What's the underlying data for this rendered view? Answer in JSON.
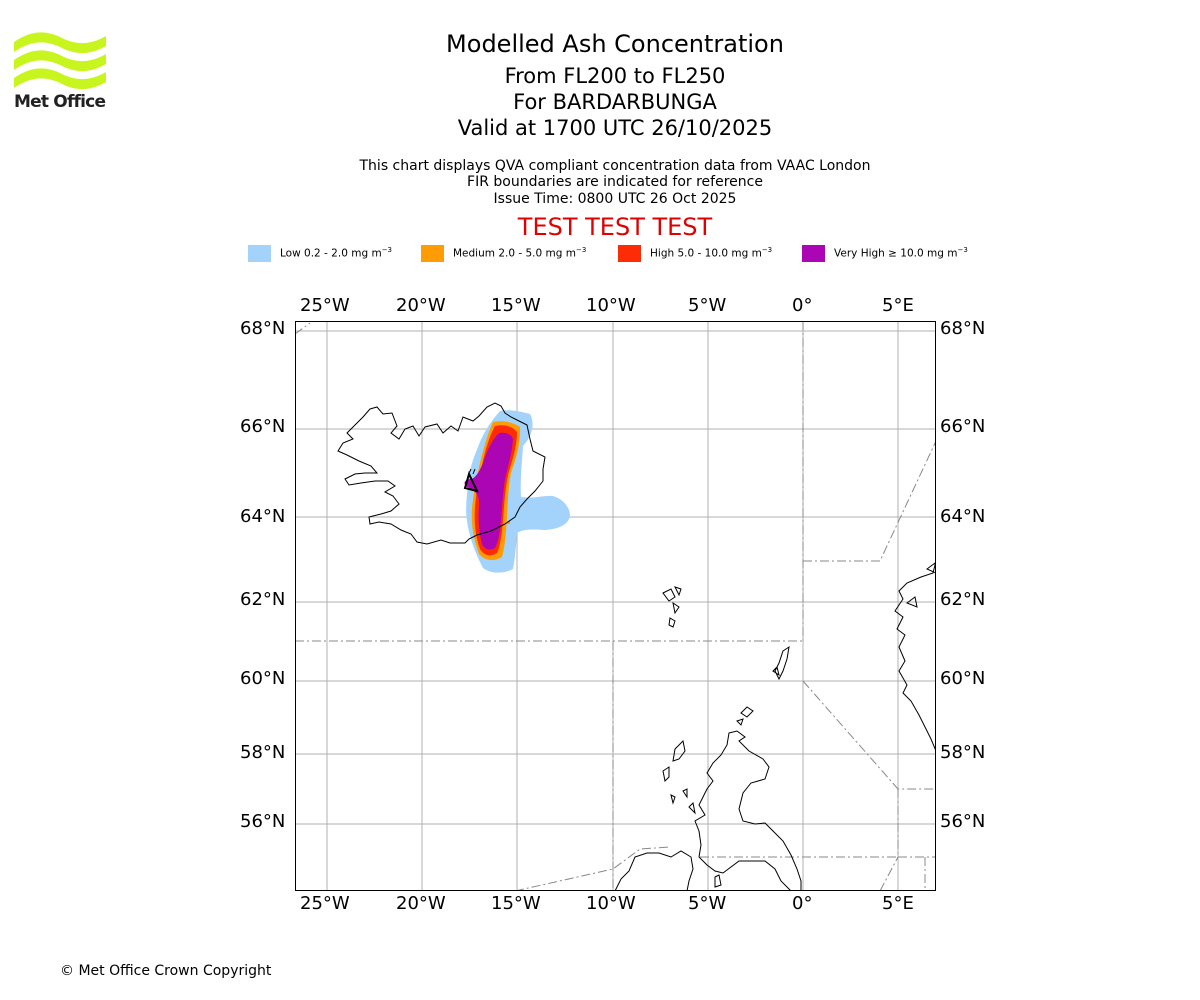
{
  "header": {
    "title": "Modelled Ash Concentration",
    "flight_levels": "From FL200 to FL250",
    "volcano": "For BARDARBUNGA",
    "valid": "Valid at 1700 UTC 26/10/2025",
    "description_1": "This chart displays QVA compliant concentration data from VAAC London",
    "description_2": "FIR boundaries are indicated for reference",
    "issue_time": "Issue Time: 0800 UTC 26 Oct 2025",
    "test_banner": "TEST TEST TEST"
  },
  "logo": {
    "text": "Met Office"
  },
  "legend": [
    {
      "label": "Low 0.2 - 2.0 mg m",
      "unit_exp": "−3",
      "color": "#a3d3fa"
    },
    {
      "label": "Medium 2.0 - 5.0 mg m",
      "unit_exp": "−3",
      "color": "#fd9c04"
    },
    {
      "label": "High 5.0 - 10.0 mg m",
      "unit_exp": "−3",
      "color": "#fd2c06"
    },
    {
      "label": "Very High  ≥  10.0 mg m",
      "unit_exp": "−3",
      "color": "#ac05b3"
    }
  ],
  "map": {
    "longitude_labels": [
      "25°W",
      "20°W",
      "15°W",
      "10°W",
      "5°W",
      "0°",
      "5°E"
    ],
    "latitude_labels": [
      "68°N",
      "66°N",
      "64°N",
      "62°N",
      "60°N",
      "58°N",
      "56°N"
    ],
    "volcano_name": "BARDARBUNGA",
    "colors": {
      "test_banner": "#e00000",
      "logo_green": "#c8f51e",
      "grid": "#b0b0b0",
      "fir": "#888888"
    }
  },
  "footer": {
    "copyright": "© Met Office Crown Copyright"
  }
}
